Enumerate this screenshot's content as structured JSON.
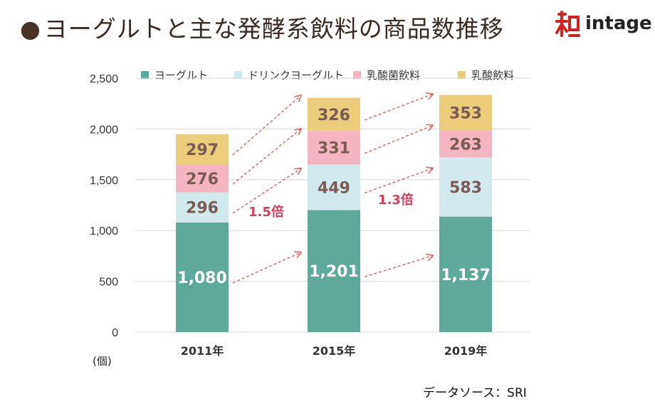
{
  "title": "ヨーグルトと主な発酵系飲料の商品数推移",
  "bullet": "●",
  "logo": {
    "word": "intage",
    "mark_label": "知"
  },
  "unit_label": "(個)",
  "source": "データソース：SRI",
  "colors": {
    "yogurt": "#5fa99a",
    "drink_yogurt": "#d1e9ec",
    "lactic_bacteria": "#f2b5c1",
    "lactic_drink": "#ebcc7b",
    "arrow": "#e06a62",
    "growth_text": "#d13f5b",
    "label_dark": "#7a5c54",
    "label_light": "#ffffff"
  },
  "chart_data": {
    "type": "bar",
    "stacked": true,
    "categories": [
      "2011年",
      "2015年",
      "2019年"
    ],
    "series": [
      {
        "name": "ヨーグルト",
        "values": [
          1080,
          1201,
          1137
        ],
        "color_key": "yogurt",
        "label_color_key": "label_light"
      },
      {
        "name": "ドリンクヨーグルト",
        "values": [
          296,
          449,
          583
        ],
        "color_key": "drink_yogurt",
        "label_color_key": "label_dark"
      },
      {
        "name": "乳酸菌飲料",
        "values": [
          276,
          331,
          263
        ],
        "color_key": "lactic_bacteria",
        "label_color_key": "label_dark"
      },
      {
        "name": "乳酸飲料",
        "values": [
          297,
          326,
          353
        ],
        "color_key": "lactic_drink",
        "label_color_key": "label_dark"
      }
    ],
    "data_labels": [
      [
        "1,080",
        "296",
        "276",
        "297"
      ],
      [
        "1,201",
        "449",
        "331",
        "326"
      ],
      [
        "1,137",
        "583",
        "263",
        "353"
      ]
    ],
    "y_ticks": [
      0,
      500,
      1000,
      1500,
      2000,
      2500
    ],
    "y_tick_labels": [
      "0",
      "500",
      "1,000",
      "1,500",
      "2,000",
      "2,500"
    ],
    "ylim": [
      0,
      2500
    ],
    "grid": true,
    "legend_position": "top",
    "annotations": [
      {
        "text": "1.5倍",
        "between": [
          "2011年",
          "2015年"
        ]
      },
      {
        "text": "1.3倍",
        "between": [
          "2015年",
          "2019年"
        ]
      }
    ],
    "xlabel": "",
    "ylabel": ""
  }
}
